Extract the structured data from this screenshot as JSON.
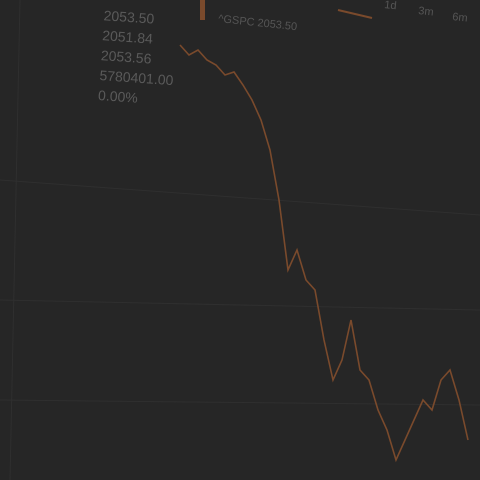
{
  "stats": [
    "2053.50",
    "2051.84",
    "2053.56",
    "5780401.00",
    "0.00%"
  ],
  "legend": {
    "label": "^GSPC 2053.50",
    "color": "#7a4a2c"
  },
  "ranges": [
    "1d",
    "3m",
    "6m"
  ],
  "price_line": {
    "color": "#7a4a2c",
    "values": [
      2055,
      2054,
      2054.5,
      2053.5,
      2053,
      2052,
      2052.3,
      2051,
      2049.5,
      2047.5,
      2044.5,
      2039.5,
      2032.5,
      2034.5,
      2031.5,
      2030.5,
      2025.5,
      2021.5,
      2023.5,
      2027.5,
      2022.5,
      2021.5,
      2018.5,
      2016.5,
      2013.5,
      2015.5,
      2017.5,
      2019.5,
      2018.5,
      2021.5,
      2022.5,
      2019.5,
      2015.5
    ]
  }
}
